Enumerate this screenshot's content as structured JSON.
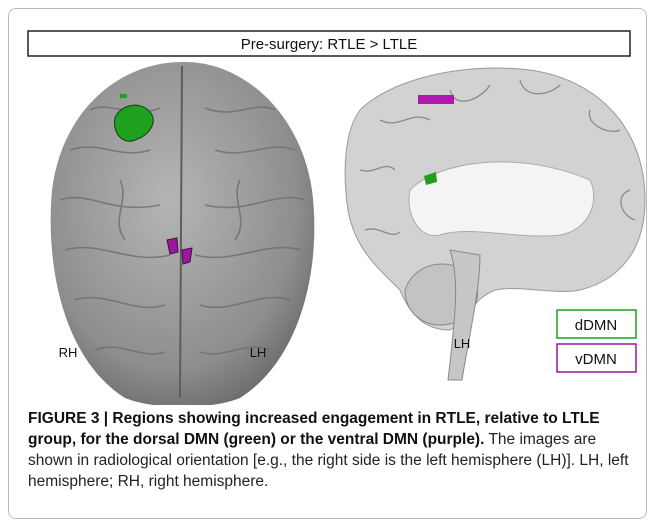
{
  "figure": {
    "panel_title": "Pre-surgery: RTLE > LTLE",
    "labels": {
      "top_view_right": "RH",
      "top_view_left": "LH",
      "sagittal": "LH"
    },
    "legend": [
      "dDMN",
      "vDMN"
    ],
    "caption": {
      "heading": "FIGURE 3 | Regions showing increased engagement in RTLE, relative to LTLE group, for the dorsal DMN (green) or the ventral DMN (purple).",
      "text": "The images are shown in radiological orientation [e.g., the right side is the left hemisphere (LH)]. LH, left hemisphere; RH, right hemisphere."
    }
  }
}
